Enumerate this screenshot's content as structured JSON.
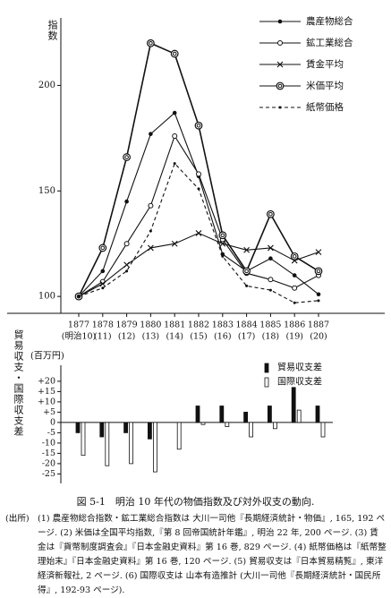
{
  "chart_data": [
    {
      "type": "line",
      "y_label": "指数",
      "categories": [
        "1877",
        "1878",
        "1879",
        "1880",
        "1881",
        "1882",
        "1883",
        "1884",
        "1885",
        "1886",
        "1887"
      ],
      "category_sublabels": [
        "(明治10)",
        "(11)",
        "(12)",
        "(13)",
        "(14)",
        "(15)",
        "(16)",
        "(17)",
        "(18)",
        "(19)",
        "(20)"
      ],
      "ylim": [
        92,
        232
      ],
      "yticks": [
        100,
        150,
        200
      ],
      "series": [
        {
          "name": "農産物総合",
          "color": "#111111",
          "marker": "filled-circle",
          "dash": false,
          "values": [
            100,
            112,
            145,
            177,
            187,
            157,
            120,
            112,
            118,
            110,
            101
          ]
        },
        {
          "name": "鉱工業総合",
          "color": "#111111",
          "marker": "open-circle",
          "dash": false,
          "values": [
            100,
            107,
            125,
            143,
            176,
            158,
            127,
            111,
            108,
            104,
            110
          ]
        },
        {
          "name": "賃金平均",
          "color": "#111111",
          "marker": "cross",
          "dash": false,
          "values": [
            100,
            106,
            115,
            123,
            125,
            130,
            125,
            122,
            123,
            117,
            121
          ]
        },
        {
          "name": "米価平均",
          "color": "#111111",
          "marker": "double-circle",
          "dash": false,
          "values": [
            100,
            123,
            166,
            220,
            215,
            181,
            129,
            112,
            139,
            119,
            112
          ]
        },
        {
          "name": "紙幣価格",
          "color": "#111111",
          "marker": "dot",
          "dash": true,
          "values": [
            100,
            104,
            112,
            131,
            163,
            151,
            119,
            105,
            103,
            97,
            98
          ]
        }
      ]
    },
    {
      "type": "bar",
      "y_label": "貿易収支・国際収支差",
      "unit_label": "(百万円)",
      "ylim": [
        -27,
        23
      ],
      "yticks": [
        {
          "value": 20,
          "label": "+20"
        },
        {
          "value": 15,
          "label": "+15"
        },
        {
          "value": 10,
          "label": "+10"
        },
        {
          "value": 5,
          "label": "+5"
        },
        0,
        -5,
        -10,
        -15,
        -20,
        -25
      ],
      "series": [
        {
          "name": "貿易収支差",
          "color": "#111111",
          "values": [
            -5,
            -7,
            -5,
            -8,
            0,
            8,
            8,
            5,
            8,
            17,
            8
          ]
        },
        {
          "name": "国際収支差",
          "color": "#ffffff",
          "values": [
            -16,
            -21,
            -20,
            -24,
            -13,
            -1,
            -2,
            -7,
            -3,
            6,
            -7
          ]
        }
      ]
    }
  ],
  "caption": "図 5-1　明治 10 年代の物価指数及び対外収支の動向.",
  "source_label": "(出所)",
  "source_notes": "(1) 農産物総合指数・鉱工業総合指数は 大川一司他『長期経済統計・物価』, 165, 192 ページ. (2) 米価は全国平均指数,『第 8 回帝国統計年鑑』, 明治 22 年, 200 ページ. (3) 賃金は『貨幣制度調査会』『日本金融史資料』第 16 巻, 829 ページ. (4) 紙幣価格は『紙幣整理始末』『日本金融史資料』第 16 巻, 120 ページ. (5) 貿易収支は『日本貿易精覧』, 東洋経済新報社, 2 ページ. (6) 国際収支は 山本有造推計 (大川一司他『長期経済統計・国民所得』, 192-93 ページ)."
}
